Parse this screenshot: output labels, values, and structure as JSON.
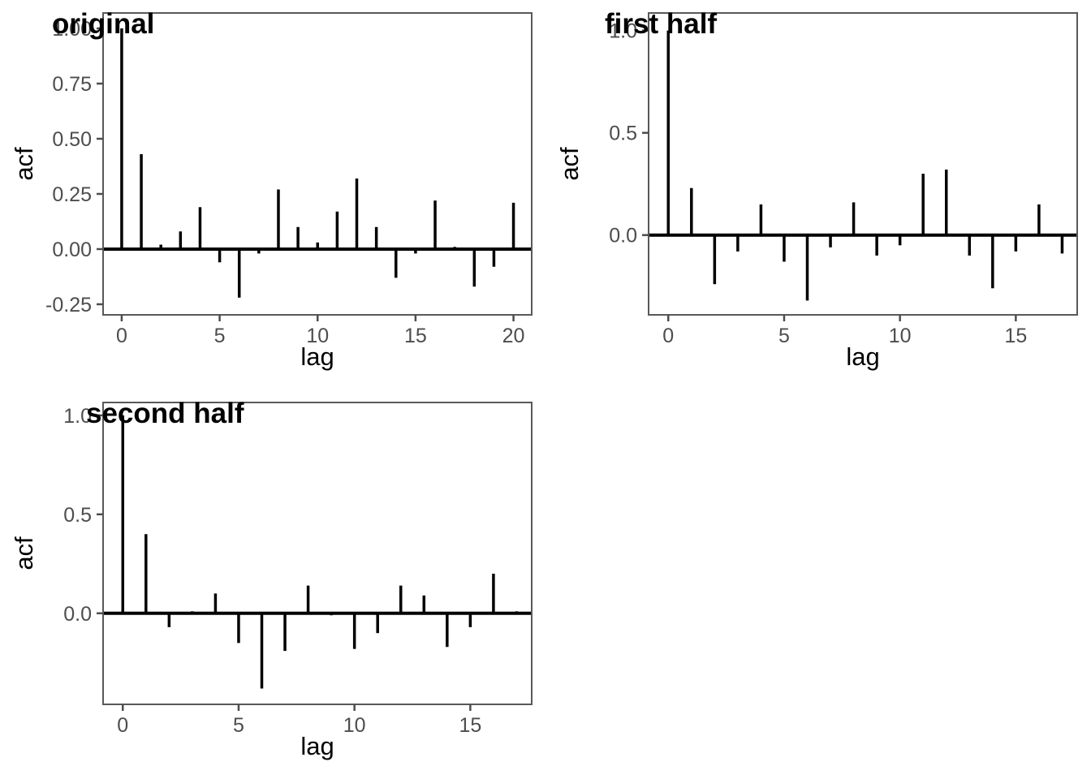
{
  "colors": {
    "background": "#ffffff",
    "bar": "#000000",
    "zero_line": "#000000",
    "panel_border": "#595959",
    "tick_mark": "#4d4d4d",
    "axis_text": "#4d4d4d",
    "title_text": "#000000"
  },
  "chart_data": [
    {
      "type": "bar",
      "title": "original",
      "xlabel": "lag",
      "ylabel": "acf",
      "x": [
        0,
        1,
        2,
        3,
        4,
        5,
        6,
        7,
        8,
        9,
        10,
        11,
        12,
        13,
        14,
        15,
        16,
        17,
        18,
        19,
        20
      ],
      "values": [
        1.0,
        0.43,
        0.02,
        0.08,
        0.19,
        -0.06,
        -0.22,
        -0.02,
        0.27,
        0.1,
        0.03,
        0.17,
        0.32,
        0.1,
        -0.13,
        -0.02,
        0.22,
        0.01,
        -0.17,
        -0.08,
        0.21
      ],
      "xticks": [
        0,
        5,
        10,
        15,
        20
      ],
      "yticks": [
        1.0,
        0.75,
        0.5,
        0.25,
        0.0,
        -0.25
      ],
      "ytick_labels": [
        "1.00",
        "0.75",
        "0.50",
        "0.25",
        "0.00",
        "-0.25"
      ],
      "xlim": [
        -0.95,
        20.93
      ],
      "ylim": [
        -0.298,
        1.07
      ],
      "grid": false,
      "legend": false
    },
    {
      "type": "bar",
      "title": "first half",
      "xlabel": "lag",
      "ylabel": "acf",
      "x": [
        0,
        1,
        2,
        3,
        4,
        5,
        6,
        7,
        8,
        9,
        10,
        11,
        12,
        13,
        14,
        15,
        16,
        17
      ],
      "values": [
        1.0,
        0.23,
        -0.24,
        -0.08,
        0.15,
        -0.13,
        -0.32,
        -0.06,
        0.16,
        -0.1,
        -0.05,
        0.3,
        0.32,
        -0.1,
        -0.26,
        -0.08,
        0.15,
        -0.09
      ],
      "xticks": [
        0,
        5,
        10,
        15
      ],
      "yticks": [
        1.0,
        0.5,
        0.0
      ],
      "ytick_labels": [
        "1.0",
        "0.5",
        "0.0"
      ],
      "xlim": [
        -0.85,
        17.65
      ],
      "ylim": [
        -0.39,
        1.086
      ],
      "grid": false,
      "legend": false
    },
    {
      "type": "bar",
      "title": "second half",
      "xlabel": "lag",
      "ylabel": "acf",
      "x": [
        0,
        1,
        2,
        3,
        4,
        5,
        6,
        7,
        8,
        9,
        10,
        11,
        12,
        13,
        14,
        15,
        16,
        17
      ],
      "values": [
        1.0,
        0.4,
        -0.07,
        0.01,
        0.1,
        -0.15,
        -0.38,
        -0.19,
        0.14,
        -0.01,
        -0.18,
        -0.1,
        0.14,
        0.09,
        -0.17,
        -0.07,
        0.2,
        0.01
      ],
      "xticks": [
        0,
        5,
        10,
        15
      ],
      "yticks": [
        1.0,
        0.5,
        0.0
      ],
      "ytick_labels": [
        "1.0",
        "0.5",
        "0.0"
      ],
      "xlim": [
        -0.85,
        17.65
      ],
      "ylim": [
        -0.46,
        1.065
      ],
      "grid": false,
      "legend": false
    }
  ]
}
